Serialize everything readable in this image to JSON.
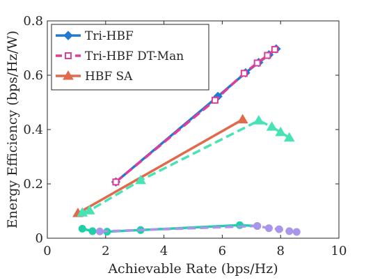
{
  "chart_data": {
    "type": "line",
    "title": "",
    "xlabel": "Achievable Rate (bps/Hz)",
    "ylabel": "Energy Efficiency (bps/Hz/W)",
    "xlim": [
      0,
      10
    ],
    "ylim": [
      0,
      0.8
    ],
    "xticks": [
      0,
      2,
      4,
      6,
      8,
      10
    ],
    "xtick_labels": [
      "0",
      "2",
      "4",
      "6",
      "8",
      "10"
    ],
    "yticks": [
      0,
      0.2,
      0.4,
      0.6,
      0.8
    ],
    "ytick_labels": [
      "0",
      "0.2",
      "0.4",
      "0.6",
      "0.8"
    ],
    "grid": false,
    "legend_position": "top-left",
    "series": [
      {
        "name": "Tri-HBF",
        "color": "#1f7ad1",
        "line_style": "solid",
        "marker": "diamond",
        "x": [
          2.35,
          5.85,
          6.8,
          7.25,
          7.6,
          7.85
        ],
        "y": [
          0.207,
          0.522,
          0.609,
          0.647,
          0.675,
          0.697
        ]
      },
      {
        "name": "Tri-HBF DT-Man",
        "color": "#e03c98",
        "line_style": "dashed",
        "marker": "square",
        "x": [
          2.35,
          5.75,
          6.75,
          7.2,
          7.55,
          7.8
        ],
        "y": [
          0.207,
          0.508,
          0.607,
          0.645,
          0.673,
          0.695
        ]
      },
      {
        "name": "HBF SA",
        "color": "#e06a4a",
        "line_style": "solid",
        "marker": "triangle",
        "x": [
          1.05,
          6.7
        ],
        "y": [
          0.092,
          0.437
        ]
      },
      {
        "name": "",
        "color": "#48e3b4",
        "line_style": "dashed",
        "marker": "triangle",
        "x": [
          1.2,
          1.45,
          3.2,
          7.25,
          7.7,
          8.0,
          8.3
        ],
        "y": [
          0.094,
          0.102,
          0.213,
          0.433,
          0.41,
          0.39,
          0.37
        ]
      },
      {
        "name": "",
        "color": "#1fcfa8",
        "line_style": "solid",
        "marker": "circle",
        "x": [
          1.2,
          1.55,
          2.05,
          3.2,
          6.6,
          7.2
        ],
        "y": [
          0.035,
          0.026,
          0.024,
          0.03,
          0.048,
          0.045
        ]
      },
      {
        "name": "",
        "color": "#a995ea",
        "line_style": "dashed",
        "marker": "circle",
        "x": [
          1.8,
          7.2,
          7.6,
          7.95,
          8.3,
          8.55
        ],
        "y": [
          0.025,
          0.045,
          0.037,
          0.033,
          0.026,
          0.023
        ]
      }
    ]
  }
}
